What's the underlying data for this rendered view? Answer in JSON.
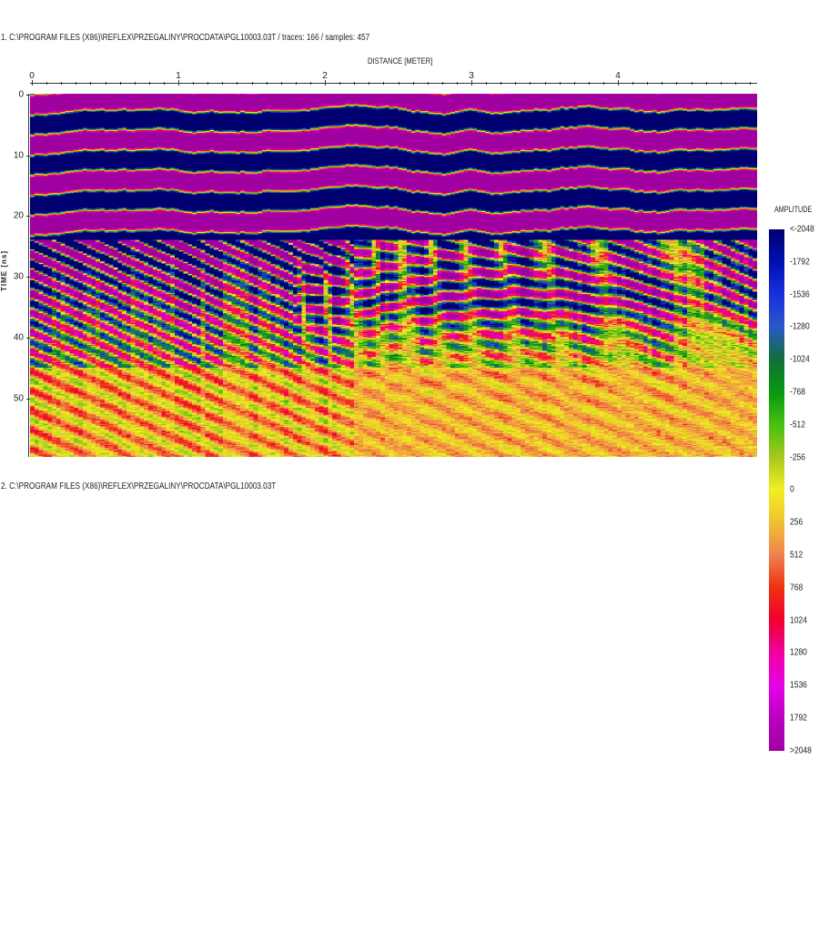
{
  "panel1_title": "1. C:\\PROGRAM FILES (X86)\\REFLEX\\PRZEGALINY\\PROCDATA\\PGL10003.03T / traces: 166 / samples: 457",
  "panel2_title": "2. C:\\PROGRAM FILES (X86)\\REFLEX\\PRZEGALINY\\PROCDATA\\PGL10003.03T",
  "chart_data": {
    "type": "heatmap",
    "title": "",
    "traces": 166,
    "samples": 457,
    "xlabel": "DISTANCE [METER]",
    "ylabel": "TIME [ns]",
    "xlim": [
      0,
      4.95
    ],
    "ylim": [
      0,
      59.7
    ],
    "x_ticks": [
      "0",
      "1",
      "2",
      "3",
      "4"
    ],
    "y_ticks": [
      "0",
      "10",
      "20",
      "30",
      "40",
      "50"
    ],
    "colorbar": {
      "title": "AMPLITUDE",
      "labels": [
        "<-2048",
        "-1792",
        "-1536",
        "-1280",
        "-1024",
        "-768",
        "-512",
        "-256",
        "0",
        "256",
        "512",
        "768",
        "1024",
        "1280",
        "1536",
        "1792",
        ">2048"
      ],
      "colors": [
        "#000070",
        "#0010b0",
        "#1830e0",
        "#2a58c8",
        "#107038",
        "#089810",
        "#48c010",
        "#a8c820",
        "#f0f020",
        "#f0c030",
        "#f08050",
        "#f03010",
        "#f00030",
        "#f000a0",
        "#e800e8",
        "#b800c0",
        "#a000a0"
      ]
    }
  }
}
